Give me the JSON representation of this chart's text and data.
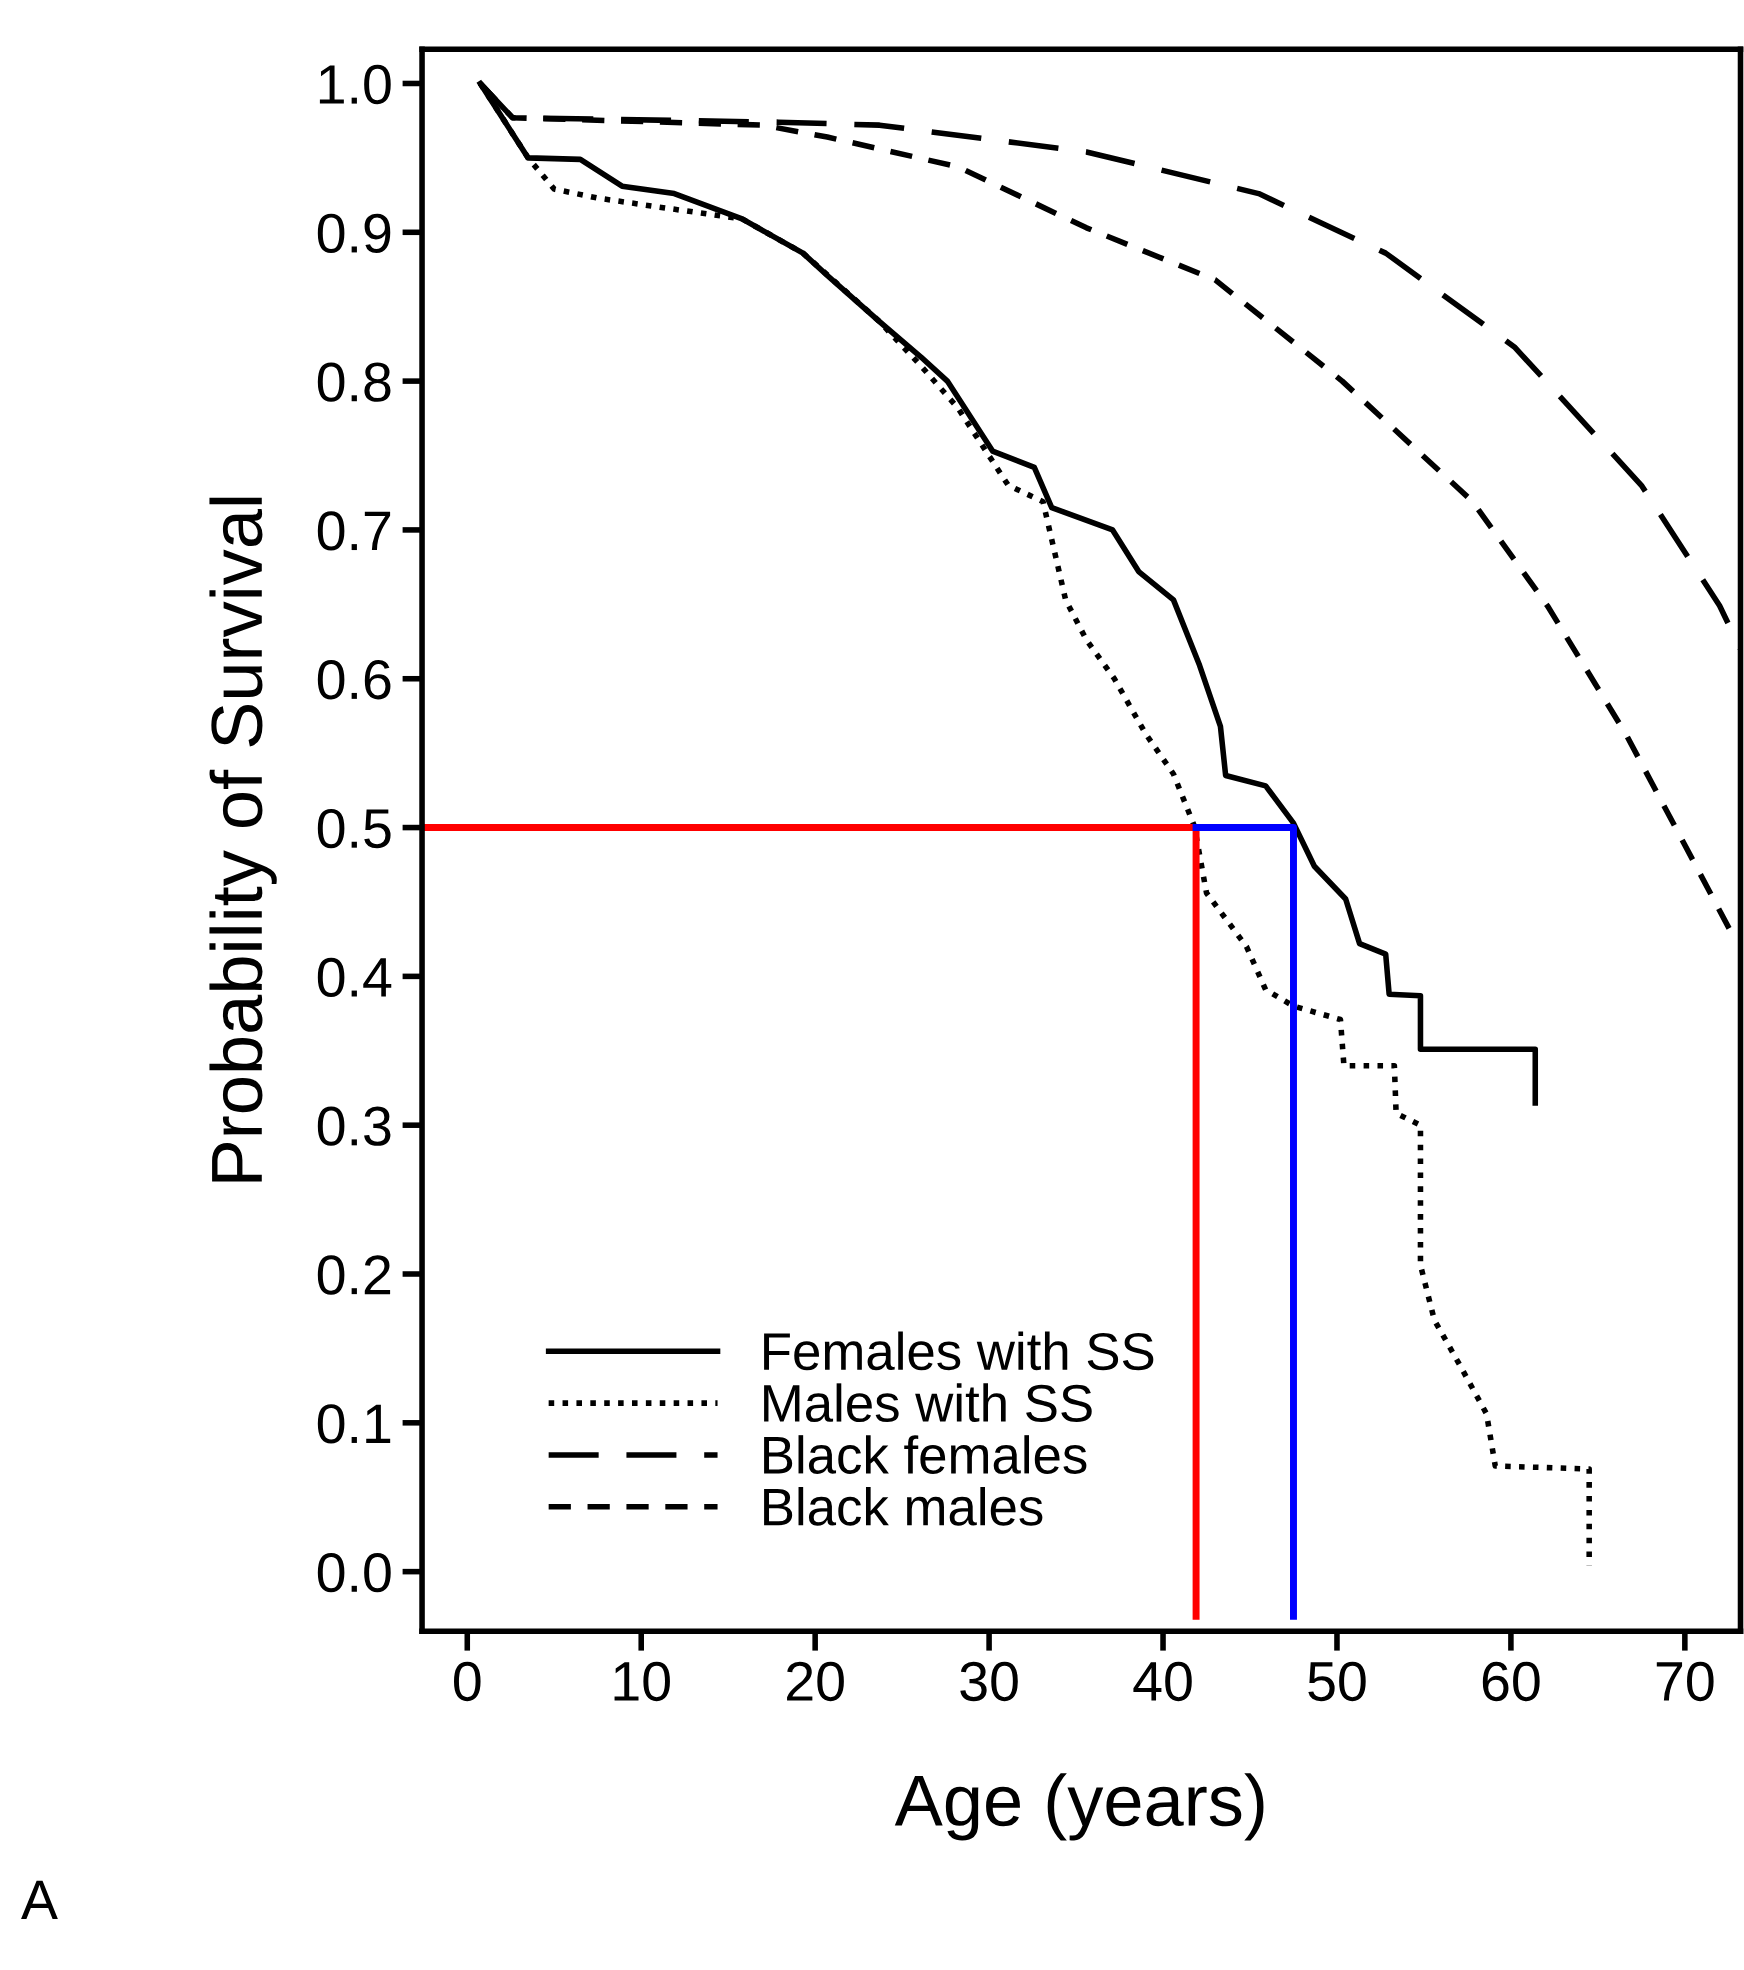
{
  "chart_data": {
    "type": "line",
    "xlabel": "Age (years)",
    "ylabel": "Probability of Survival",
    "xlim": [
      -2.6,
      73.2
    ],
    "ylim": [
      -0.04,
      1.023
    ],
    "xticks": [
      0,
      10,
      20,
      30,
      40,
      50,
      60,
      70
    ],
    "yticks": [
      {
        "value": 0,
        "label": "0.0"
      },
      0.1,
      0.2,
      0.3,
      0.4,
      0.5,
      0.6,
      0.7,
      0.8,
      0.9,
      {
        "value": 1,
        "label": "1.0"
      }
    ],
    "grid": false,
    "legend": "bottom left",
    "marker": "none",
    "annotations": [
      "A"
    ],
    "series": [
      {
        "name": "Females with SS",
        "color": "#000000",
        "line_style": "solid",
        "x": [
          0.75,
          3.5,
          6.5,
          8.9,
          11.9,
          15.8,
          19.3,
          20.7,
          23.7,
          26.1,
          27.6,
          30.2,
          32.6,
          33.6,
          37.1,
          38.6,
          40.6,
          42.1,
          43.3,
          43.6,
          45.9,
          47.5,
          48.7,
          50.5,
          51.3,
          52.8,
          53.0,
          54.8,
          54.8,
          61.4,
          61.4
        ],
        "values": [
          1.0,
          0.95,
          0.949,
          0.931,
          0.926,
          0.909,
          0.886,
          0.871,
          0.84,
          0.816,
          0.8,
          0.753,
          0.742,
          0.715,
          0.7,
          0.672,
          0.653,
          0.609,
          0.568,
          0.535,
          0.528,
          0.503,
          0.474,
          0.452,
          0.422,
          0.415,
          0.388,
          0.387,
          0.351,
          0.351,
          0.315
        ]
      },
      {
        "name": "Males with SS",
        "color": "#000000",
        "line_style": "dotted",
        "x": [
          0.75,
          3.5,
          5.0,
          7.5,
          11.0,
          15.8,
          19.3,
          23.7,
          26.1,
          28.2,
          31.1,
          33.1,
          34.4,
          35.6,
          37.2,
          39.0,
          40.6,
          41.8,
          42.5,
          44.8,
          45.9,
          47.5,
          50.2,
          50.4,
          53.3,
          53.4,
          54.8,
          54.8,
          55.6,
          57.1,
          58.6,
          59.1,
          64.5,
          64.5
        ],
        "values": [
          1.0,
          0.95,
          0.929,
          0.923,
          0.917,
          0.909,
          0.886,
          0.84,
          0.81,
          0.782,
          0.73,
          0.719,
          0.653,
          0.626,
          0.6,
          0.563,
          0.536,
          0.501,
          0.456,
          0.42,
          0.391,
          0.38,
          0.371,
          0.34,
          0.34,
          0.308,
          0.3,
          0.206,
          0.169,
          0.138,
          0.106,
          0.071,
          0.069,
          0.004
        ]
      },
      {
        "name": "Black females",
        "color": "#000000",
        "line_style": "dashed",
        "x": [
          0.75,
          2.6,
          17.9,
          23.7,
          35.6,
          45.5,
          52.8,
          60.2,
          67.5,
          72.0,
          73.2
        ],
        "values": [
          1.0,
          0.977,
          0.974,
          0.972,
          0.954,
          0.926,
          0.886,
          0.823,
          0.73,
          0.649,
          0.62
        ]
      },
      {
        "name": "Black males",
        "color": "#000000",
        "line_style": "dashed",
        "x": [
          0.75,
          2.6,
          17.0,
          20.7,
          28.2,
          35.6,
          43.0,
          50.3,
          57.8,
          62.1,
          66.6,
          72.6
        ],
        "values": [
          1.0,
          0.977,
          0.972,
          0.964,
          0.944,
          0.903,
          0.868,
          0.8,
          0.719,
          0.649,
          0.563,
          0.431
        ]
      },
      {
        "color": "#ff0000",
        "line_style": "solid",
        "x": [
          -2.6,
          41.9,
          41.9
        ],
        "values": [
          0.5,
          0.5,
          -0.03
        ]
      },
      {
        "color": "#0000ff",
        "line_style": "solid",
        "x": [
          41.9,
          47.5,
          47.5
        ],
        "values": [
          0.5,
          0.5,
          -0.03
        ]
      }
    ]
  }
}
